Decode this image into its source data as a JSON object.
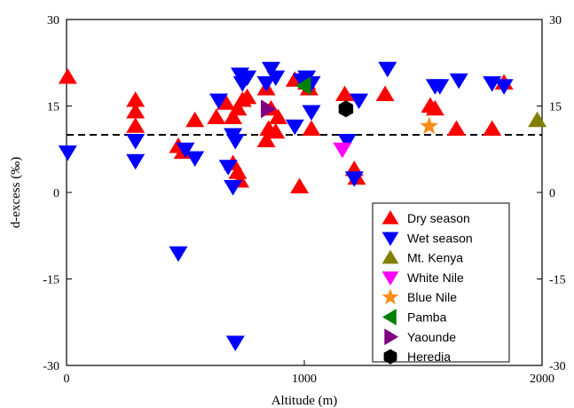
{
  "chart_data": {
    "type": "scatter",
    "xlabel": "Altitude (m)",
    "ylabel": "d-excess (‰)",
    "xlim": [
      0,
      2000
    ],
    "ylim": [
      -30,
      30
    ],
    "x_ticks": [
      0,
      1000,
      2000
    ],
    "y_ticks": [
      -30,
      -15,
      0,
      15,
      30
    ],
    "secondary_y_axis": true,
    "grid": false,
    "reference_line": {
      "y": 10,
      "style": "dashed"
    },
    "legend_position": "bottom-right",
    "series": [
      {
        "name": "Dry season",
        "marker": "triangle-up",
        "color": "#ff0000",
        "points": [
          [
            5,
            20
          ],
          [
            290,
            16
          ],
          [
            290,
            14
          ],
          [
            290,
            11.5
          ],
          [
            540,
            12.5
          ],
          [
            470,
            8
          ],
          [
            490,
            7
          ],
          [
            630,
            13
          ],
          [
            670,
            15.5
          ],
          [
            700,
            13
          ],
          [
            720,
            14.5
          ],
          [
            740,
            16
          ],
          [
            760,
            16.5
          ],
          [
            700,
            5
          ],
          [
            720,
            3.5
          ],
          [
            730,
            2
          ],
          [
            840,
            18
          ],
          [
            840,
            9
          ],
          [
            850,
            11
          ],
          [
            860,
            14.5
          ],
          [
            880,
            10.5
          ],
          [
            890,
            13
          ],
          [
            960,
            19.5
          ],
          [
            980,
            1
          ],
          [
            1010,
            19
          ],
          [
            1020,
            18
          ],
          [
            1030,
            11
          ],
          [
            1170,
            17
          ],
          [
            1210,
            4
          ],
          [
            1220,
            2.5
          ],
          [
            1340,
            17
          ],
          [
            1530,
            15
          ],
          [
            1550,
            14.5
          ],
          [
            1640,
            11
          ],
          [
            1790,
            11
          ],
          [
            1840,
            19
          ]
        ]
      },
      {
        "name": "Wet season",
        "marker": "triangle-down",
        "color": "#0000ff",
        "points": [
          [
            5,
            7
          ],
          [
            290,
            9
          ],
          [
            290,
            5.5
          ],
          [
            470,
            -10.5
          ],
          [
            500,
            7.5
          ],
          [
            540,
            6
          ],
          [
            640,
            16
          ],
          [
            680,
            4.5
          ],
          [
            700,
            1
          ],
          [
            700,
            10
          ],
          [
            710,
            9
          ],
          [
            710,
            -26
          ],
          [
            730,
            20.5
          ],
          [
            740,
            19
          ],
          [
            760,
            20
          ],
          [
            860,
            21.5
          ],
          [
            880,
            20
          ],
          [
            840,
            19
          ],
          [
            960,
            11.5
          ],
          [
            990,
            19.5
          ],
          [
            1010,
            20
          ],
          [
            1030,
            19
          ],
          [
            1030,
            14
          ],
          [
            1180,
            9
          ],
          [
            1210,
            2.5
          ],
          [
            1230,
            16
          ],
          [
            1350,
            21.5
          ],
          [
            1550,
            18.5
          ],
          [
            1570,
            18.5
          ],
          [
            1650,
            19.5
          ],
          [
            1790,
            19
          ],
          [
            1840,
            18.5
          ]
        ]
      },
      {
        "name": "Mt. Kenya",
        "marker": "triangle-up",
        "color": "#808000",
        "points": [
          [
            1980,
            12.5
          ]
        ]
      },
      {
        "name": "White Nile",
        "marker": "triangle-down",
        "color": "#ff00ff",
        "points": [
          [
            1160,
            7.5
          ]
        ]
      },
      {
        "name": "Blue Nile",
        "marker": "star",
        "color": "#ff8c1a",
        "points": [
          [
            1525,
            11.5
          ]
        ]
      },
      {
        "name": "Pamba",
        "marker": "triangle-left",
        "color": "#008000",
        "points": [
          [
            1000,
            18.5
          ]
        ]
      },
      {
        "name": "Yaounde",
        "marker": "triangle-right",
        "color": "#800080",
        "points": [
          [
            845,
            14.5
          ]
        ]
      },
      {
        "name": "Heredia",
        "marker": "hexagon",
        "color": "#000000",
        "points": [
          [
            1175,
            14.5
          ]
        ]
      }
    ]
  }
}
